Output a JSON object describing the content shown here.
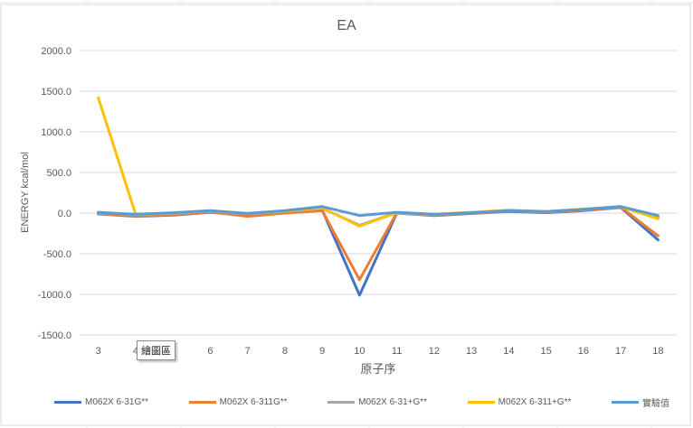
{
  "chart_data": {
    "type": "line",
    "title": "EA",
    "xlabel": "原子序",
    "ylabel": "ENERGY kcal/mol",
    "ylim": [
      -1500,
      2000
    ],
    "y_ticks": [
      "2000.0",
      "1500.0",
      "1000.0",
      "500.0",
      "0.0",
      "-500.0",
      "-1000.0",
      "-1500.0"
    ],
    "x": [
      "3",
      "4",
      "5",
      "6",
      "7",
      "8",
      "9",
      "10",
      "11",
      "12",
      "13",
      "14",
      "15",
      "16",
      "17",
      "18"
    ],
    "x_tick_labels": [
      "3",
      "4",
      "5",
      "6",
      "7",
      "8",
      "9",
      "10",
      "11",
      "12",
      "13",
      "14",
      "15",
      "16",
      "17",
      "18"
    ],
    "grid": true,
    "legend_position": "bottom",
    "series": [
      {
        "name": "M062X 6-31G**",
        "color": "#4472c4",
        "values": [
          -10,
          -40,
          -25,
          10,
          -30,
          5,
          40,
          -1010,
          0,
          -30,
          -5,
          20,
          5,
          30,
          70,
          -330
        ]
      },
      {
        "name": "M062X 6-311G**",
        "color": "#ed7d31",
        "values": [
          -5,
          -35,
          -20,
          15,
          -40,
          0,
          30,
          -820,
          5,
          -25,
          0,
          25,
          10,
          35,
          75,
          -280
        ]
      },
      {
        "name": "M062X 6-31+G**",
        "color": "#a5a5a5",
        "values": [
          5,
          -20,
          -5,
          25,
          -10,
          20,
          60,
          -150,
          5,
          -20,
          5,
          30,
          15,
          45,
          80,
          -50
        ]
      },
      {
        "name": "M062X 6-311+G**",
        "color": "#ffc000",
        "values": [
          1420,
          -15,
          0,
          30,
          -5,
          25,
          65,
          -160,
          5,
          -15,
          10,
          35,
          20,
          50,
          80,
          -70
        ]
      },
      {
        "name": "實驗值",
        "color": "#5b9bd5",
        "values": [
          10,
          -15,
          5,
          30,
          -5,
          30,
          80,
          -30,
          10,
          -15,
          5,
          30,
          20,
          45,
          80,
          -30
        ]
      }
    ]
  },
  "tooltip": {
    "text": "繪圖區"
  }
}
